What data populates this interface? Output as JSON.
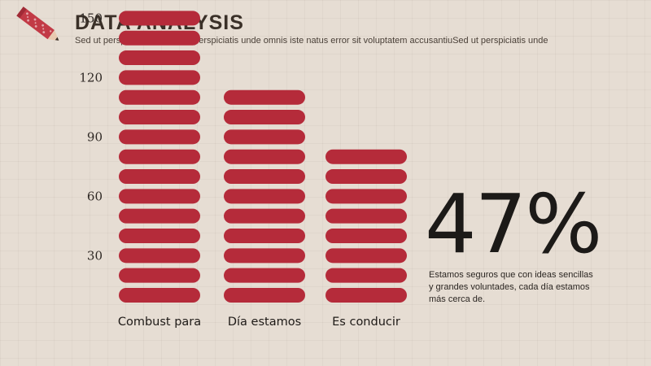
{
  "header": {
    "title": "DATA  ANALYSIS",
    "subtitle": "Sed ut perspiciatis undSed ut perspiciatis unde omnis iste natus error sit voluptatem accusantiuSed ut perspiciatis unde"
  },
  "icons": {
    "pencil": "pencil-icon"
  },
  "colors": {
    "bar": "#b52b3a",
    "pencil": "#c23a46",
    "text": "#3a3028"
  },
  "chart_data": {
    "type": "bar",
    "categories": [
      "Combust para",
      "Día estamos",
      "Es conducir"
    ],
    "values": [
      150,
      110,
      80
    ],
    "segment_step": 10,
    "y_ticks": [
      150,
      120,
      90,
      60,
      30
    ],
    "ylim": [
      0,
      150
    ],
    "grid": false
  },
  "stat": {
    "value": "47%",
    "description": "Estamos seguros que con ideas sencillas y grandes voluntades, cada día estamos más cerca de."
  }
}
